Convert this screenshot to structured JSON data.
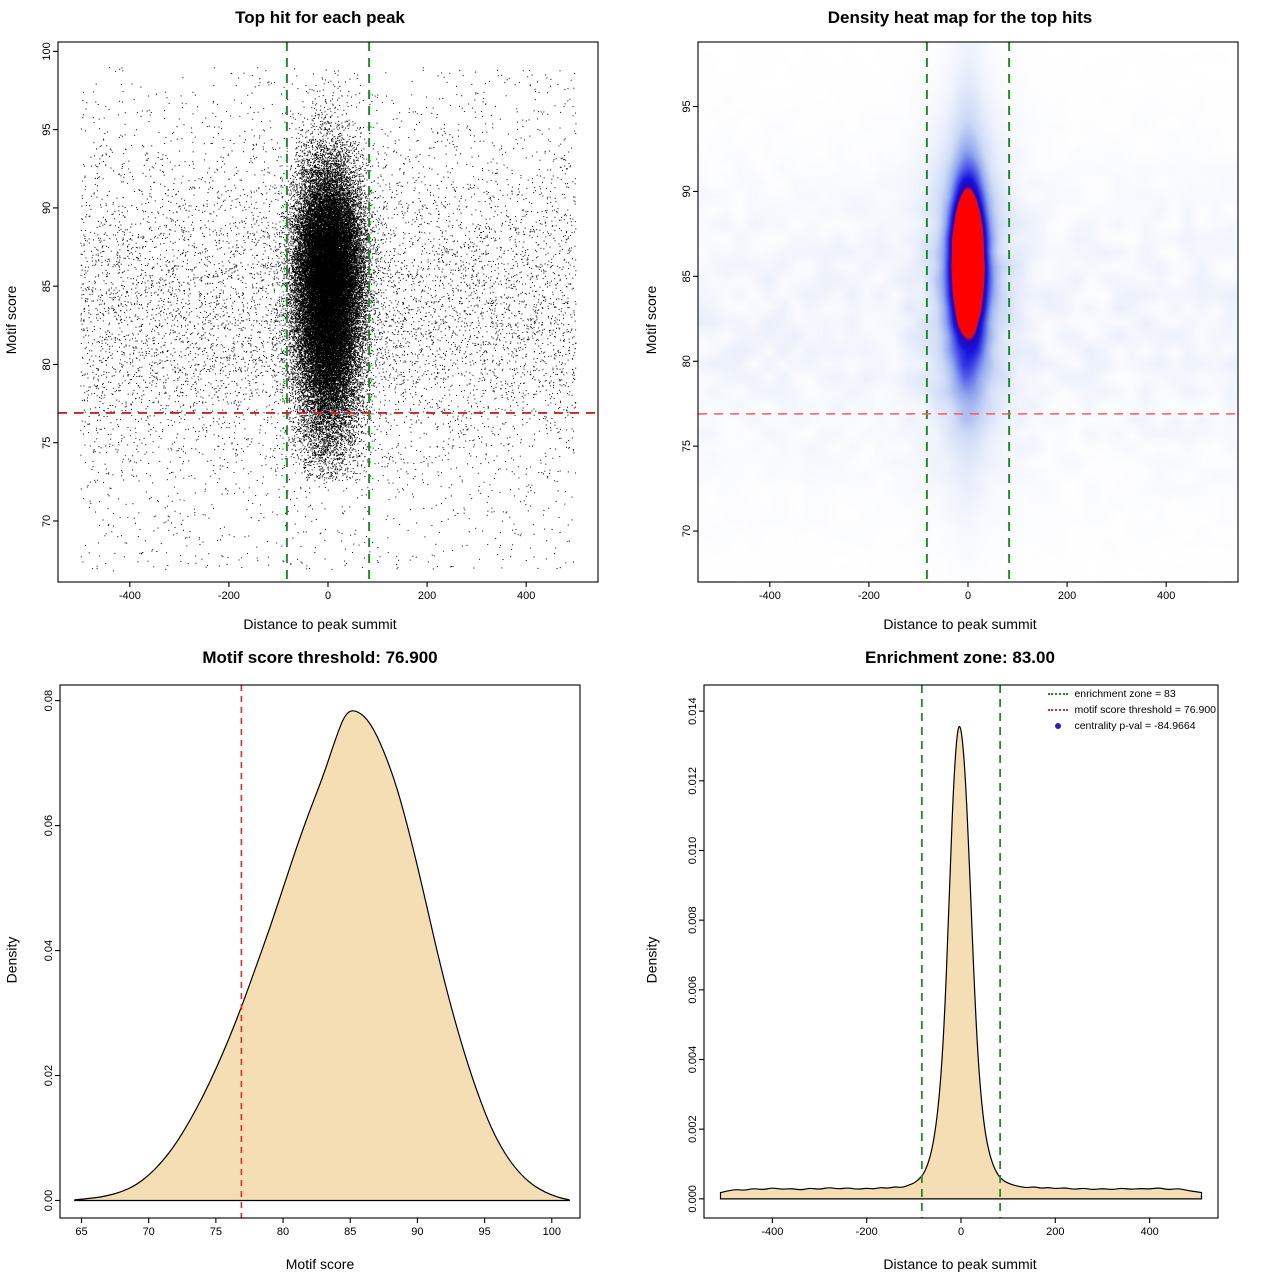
{
  "page": {
    "background": "#ffffff"
  },
  "chart_data": [
    {
      "type": "scatter",
      "title": "Top hit for each peak",
      "xlabel": "Distance to peak summit",
      "ylabel": "Motif score",
      "xlim": [
        -545,
        545
      ],
      "ylim": [
        66.1,
        100.6
      ],
      "margins": {
        "l": 58,
        "r": 42,
        "t": 42,
        "b": 58
      },
      "xticks": {
        "values": [
          -400,
          -200,
          0,
          200,
          400
        ],
        "labels": [
          "-400",
          "-200",
          "0",
          "200",
          "400"
        ]
      },
      "yticks": {
        "values": [
          70,
          75,
          80,
          85,
          90,
          95,
          100
        ],
        "labels": [
          "70",
          "75",
          "80",
          "85",
          "90",
          "95",
          "100"
        ]
      },
      "point_color": "#000000",
      "cluster": {
        "n": 42000,
        "x_mean": 0,
        "x_sd": 34,
        "y_mean": 85,
        "y_sd_upper": 3.7,
        "y_sd_lower": 4.7,
        "y_min": 72.6,
        "y_max": 99.3
      },
      "background": {
        "n": 8200,
        "x_range": [
          -500,
          500
        ],
        "y_mean": 83.5,
        "y_sd": 5.4,
        "uniform_frac": 0.2,
        "y_range": [
          66.8,
          99
        ]
      },
      "vlines": [
        {
          "x": -83,
          "color": "#228B22",
          "width": 2,
          "dash": [
            9,
            7
          ]
        },
        {
          "x": 83,
          "color": "#228B22",
          "width": 2,
          "dash": [
            9,
            7
          ]
        }
      ],
      "hlines": [
        {
          "y": 76.9,
          "color": "#DD1C1C",
          "width": 1.8,
          "dash": [
            9,
            7
          ]
        }
      ]
    },
    {
      "type": "heatmap",
      "title": "Density heat map for the top hits",
      "xlabel": "Distance to peak summit",
      "ylabel": "Motif score",
      "xlim": [
        -545,
        545
      ],
      "ylim": [
        67,
        98.8
      ],
      "margins": {
        "l": 58,
        "r": 42,
        "t": 42,
        "b": 58
      },
      "xticks": {
        "values": [
          -400,
          -200,
          0,
          200,
          400
        ],
        "labels": [
          "-400",
          "-200",
          "0",
          "200",
          "400"
        ]
      },
      "yticks": {
        "values": [
          70,
          75,
          80,
          85,
          90,
          95
        ],
        "labels": [
          "70",
          "75",
          "80",
          "85",
          "90",
          "95"
        ]
      },
      "palette": {
        "stops": [
          0,
          0.1,
          0.25,
          0.42,
          0.58,
          0.72,
          0.85,
          0.92,
          1
        ],
        "colors": [
          "#ffffff",
          "#eef2fc",
          "#ccd9f6",
          "#90a6ee",
          "#4a55e8",
          "#1515e0",
          "#2a00b8",
          "#e01515",
          "#ff0000"
        ]
      },
      "components": [
        {
          "a": 1.15,
          "cx": 0,
          "sx": 20,
          "cy": 86.2,
          "sy": 2.4
        },
        {
          "a": 0.55,
          "cx": 0,
          "sx": 30,
          "cy": 85.2,
          "sy": 4.2
        },
        {
          "a": 0.26,
          "cx": 0,
          "sx": 62,
          "cy": 84.6,
          "sy": 6.8
        },
        {
          "a": 0.12,
          "cx": 0,
          "sx": 20,
          "cy": 87.5,
          "sy": 9
        }
      ],
      "background_band": {
        "a": 0.07,
        "cy": 82,
        "sy": 6.5
      },
      "vlines": [
        {
          "x": -83,
          "color": "#228B22",
          "width": 2,
          "dash": [
            9,
            7
          ]
        },
        {
          "x": 83,
          "color": "#228B22",
          "width": 2,
          "dash": [
            9,
            7
          ]
        }
      ],
      "hlines": [
        {
          "y": 76.9,
          "color": "#FF5A5A",
          "width": 1.5,
          "dash": [
            9,
            7
          ]
        }
      ]
    },
    {
      "type": "area",
      "title": "Motif score threshold: 76.900",
      "xlabel": "Motif score",
      "ylabel": "Density",
      "xlim": [
        63.4,
        102.1
      ],
      "ylim": [
        -0.0028,
        0.0825
      ],
      "margins": {
        "l": 60,
        "r": 60,
        "t": 45,
        "b": 62
      },
      "xticks": {
        "values": [
          65,
          70,
          75,
          80,
          85,
          90,
          95,
          100
        ],
        "labels": [
          "65",
          "70",
          "75",
          "80",
          "85",
          "90",
          "95",
          "100"
        ]
      },
      "yticks": {
        "values": [
          0,
          0.02,
          0.04,
          0.06,
          0.08
        ],
        "labels": [
          "0.00",
          "0.02",
          "0.04",
          "0.06",
          "0.08"
        ]
      },
      "fill": "#F5DEB3",
      "stroke": "#000000",
      "curve": {
        "x": [
          64.5,
          66,
          67,
          68,
          69,
          70,
          71,
          72,
          73,
          74,
          75,
          76,
          77,
          78,
          79,
          80,
          81,
          82,
          83,
          84,
          84.7,
          85.5,
          86.5,
          87.5,
          88.5,
          89.5,
          90.5,
          91.5,
          92.5,
          93.5,
          94.5,
          95.5,
          96.5,
          97.5,
          98.5,
          99.5,
          100.5,
          101.3
        ],
        "y": [
          0.0001,
          0.0004,
          0.0008,
          0.0014,
          0.0024,
          0.004,
          0.0062,
          0.009,
          0.0125,
          0.0165,
          0.021,
          0.026,
          0.0315,
          0.0375,
          0.0435,
          0.05,
          0.0565,
          0.0625,
          0.068,
          0.0745,
          0.0782,
          0.0785,
          0.0765,
          0.072,
          0.066,
          0.058,
          0.049,
          0.0395,
          0.031,
          0.0235,
          0.017,
          0.0115,
          0.0075,
          0.0046,
          0.0026,
          0.0013,
          0.0005,
          0.0001
        ]
      },
      "vlines": [
        {
          "x": 76.9,
          "color": "#DD2A2A",
          "width": 1.6,
          "dash": [
            6,
            5
          ]
        }
      ]
    },
    {
      "type": "area",
      "title": "Enrichment zone: 83.00",
      "xlabel": "Distance to peak summit",
      "ylabel": "Density",
      "xlim": [
        -545,
        545
      ],
      "ylim": [
        -0.00055,
        0.01475
      ],
      "margins": {
        "l": 64,
        "r": 62,
        "t": 45,
        "b": 62
      },
      "xticks": {
        "values": [
          -400,
          -200,
          0,
          200,
          400
        ],
        "labels": [
          "-400",
          "-200",
          "0",
          "200",
          "400"
        ]
      },
      "yticks": {
        "values": [
          0,
          0.002,
          0.004,
          0.006,
          0.008,
          0.01,
          0.012,
          0.014
        ],
        "labels": [
          "0.000",
          "0.002",
          "0.004",
          "0.006",
          "0.008",
          "0.010",
          "0.012",
          "0.014"
        ]
      },
      "fill": "#F5DEB3",
      "stroke": "#000000",
      "curve": {
        "x": [
          -510,
          -480,
          -460,
          -440,
          -420,
          -400,
          -380,
          -360,
          -340,
          -320,
          -300,
          -280,
          -260,
          -240,
          -220,
          -200,
          -185,
          -170,
          -155,
          -140,
          -125,
          -110,
          -100,
          -90,
          -80,
          -70,
          -60,
          -50,
          -42,
          -35,
          -28,
          -22,
          -16,
          -10,
          -5,
          0,
          5,
          10,
          16,
          22,
          28,
          35,
          42,
          50,
          60,
          70,
          80,
          90,
          100,
          110,
          125,
          140,
          155,
          170,
          185,
          200,
          220,
          240,
          260,
          280,
          300,
          320,
          340,
          360,
          380,
          400,
          420,
          440,
          460,
          480,
          510
        ],
        "y": [
          0.00018,
          0.00028,
          0.00024,
          0.0003,
          0.00026,
          0.00032,
          0.00027,
          0.0003,
          0.00025,
          0.00031,
          0.00027,
          0.00033,
          0.00028,
          0.00032,
          0.00027,
          0.00031,
          0.00028,
          0.00033,
          0.0003,
          0.00035,
          0.00032,
          0.0004,
          0.00045,
          0.00055,
          0.0007,
          0.001,
          0.0015,
          0.0024,
          0.0036,
          0.0052,
          0.0075,
          0.0098,
          0.0118,
          0.0131,
          0.0136,
          0.0135,
          0.0129,
          0.0119,
          0.0102,
          0.0082,
          0.0062,
          0.0043,
          0.003,
          0.002,
          0.0013,
          0.0009,
          0.00065,
          0.00052,
          0.00045,
          0.0004,
          0.00035,
          0.00032,
          0.00035,
          0.0003,
          0.00033,
          0.00029,
          0.00032,
          0.00027,
          0.00031,
          0.00026,
          0.0003,
          0.00026,
          0.00031,
          0.00027,
          0.0003,
          0.00028,
          0.00032,
          0.00026,
          0.0003,
          0.00024,
          0.00018
        ]
      },
      "vlines": [
        {
          "x": -83,
          "color": "#228B22",
          "width": 1.8,
          "dash": [
            8,
            6
          ]
        },
        {
          "x": 83,
          "color": "#228B22",
          "width": 1.8,
          "dash": [
            8,
            6
          ]
        }
      ],
      "legend": {
        "entries": [
          {
            "swatch": "line",
            "color": "#228B22",
            "label": "enrichment zone = 83"
          },
          {
            "swatch": "line",
            "color": "#DD2A2A",
            "label": "motif score threshold = 76.900"
          },
          {
            "swatch": "point",
            "color": "#2020CC",
            "label": "centrality p-val = -84.9664"
          }
        ]
      }
    }
  ]
}
